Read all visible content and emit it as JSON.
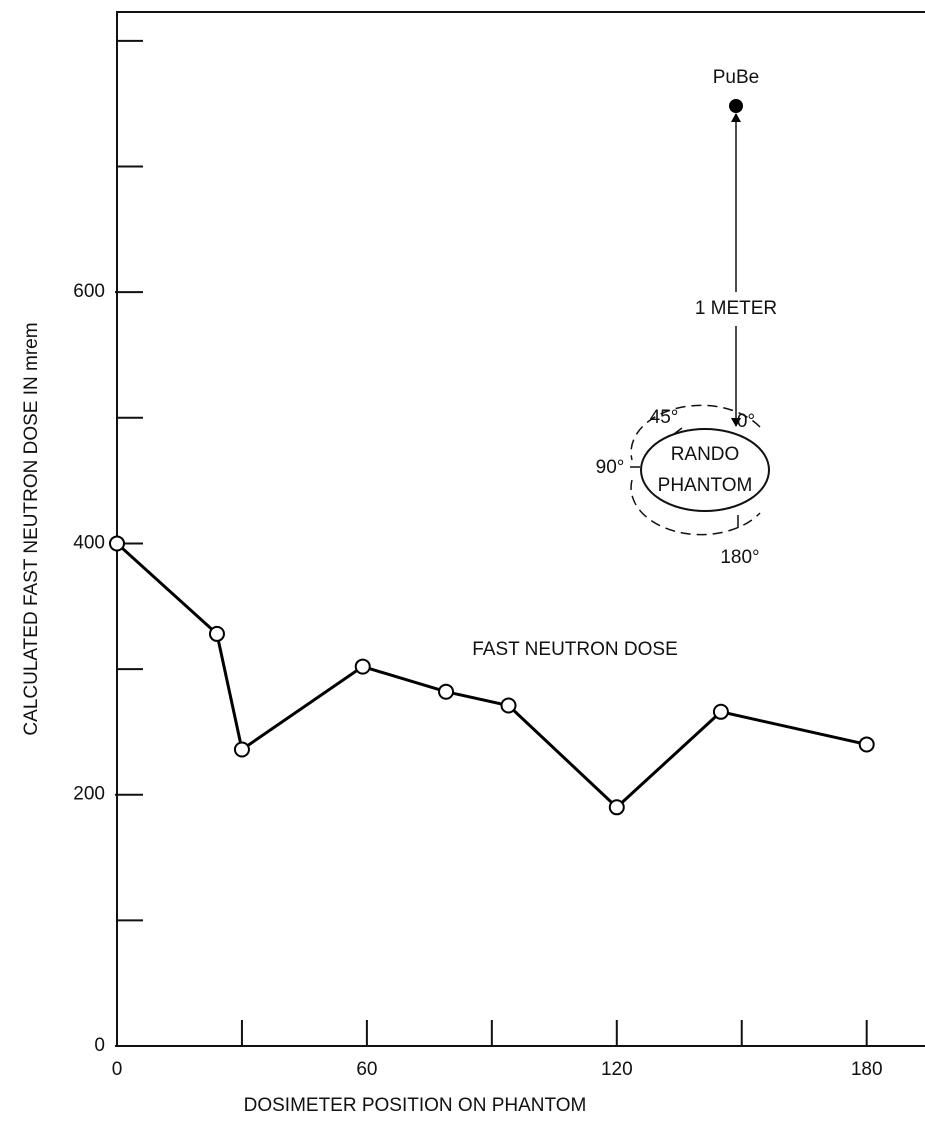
{
  "chart_data": {
    "type": "line",
    "xlabel": "DOSIMETER POSITION ON PHANTOM",
    "ylabel": "CALCULATED FAST NEUTRON DOSE IN  mrem",
    "x": [
      0,
      24,
      30,
      59,
      79,
      94,
      120,
      145,
      180
    ],
    "values": [
      400,
      328,
      236,
      302,
      282,
      271,
      190,
      266,
      240
    ],
    "color": "#000000",
    "xlim": [
      0,
      194
    ],
    "ylim": [
      0,
      823
    ],
    "xticks": [
      0,
      60,
      120,
      180
    ],
    "x_minor_ticks": [
      30,
      90,
      150
    ],
    "yticks": [
      0,
      200,
      400,
      600
    ],
    "y_minor_ticks": [
      100,
      300,
      500,
      700,
      800
    ],
    "series_label": "FAST NEUTRON DOSE",
    "inset": {
      "source": "PuBe",
      "distance": "1 METER",
      "object": [
        "RANDO",
        "PHANTOM"
      ],
      "angles": [
        "0°",
        "45°",
        "90°",
        "180°"
      ]
    }
  }
}
